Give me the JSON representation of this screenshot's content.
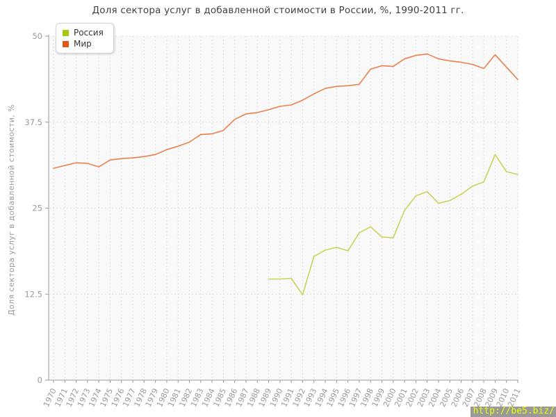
{
  "title": "Доля сектора услуг в добавленной стоимости в России, %, 1990-2011 гг.",
  "watermark": "http://be5.biz/",
  "chart_data": {
    "type": "line",
    "title": "Доля сектора услуг в добавленной стоимости в России, %, 1990-2011 гг.",
    "xlabel": "",
    "ylabel": "Доля сектора услуг в добавленной стоимости, %",
    "ylim": [
      0,
      50
    ],
    "yticks": [
      0,
      12.5,
      25,
      37.5,
      50
    ],
    "x_ticks": [
      1970,
      1971,
      1972,
      1973,
      1974,
      1975,
      1976,
      1977,
      1978,
      1979,
      1980,
      1981,
      1982,
      1983,
      1984,
      1985,
      1986,
      1987,
      1988,
      1989,
      1990,
      1991,
      1992,
      1993,
      1994,
      1995,
      1996,
      1997,
      1998,
      1999,
      2000,
      2001,
      2002,
      2003,
      2004,
      2005,
      2006,
      2007,
      2008,
      2009,
      2010,
      2011
    ],
    "grid": "dashed",
    "legend_position": "top-left",
    "plot_bg": "#f9f9f9",
    "grid_color": "#e0e0e0",
    "axis_color": "#999999",
    "tick_color": "#999999",
    "series": [
      {
        "name": "Россия",
        "color": "#a6c813",
        "line_color": "#c9d356",
        "points": [
          [
            1989,
            14.7
          ],
          [
            1990,
            14.7
          ],
          [
            1991,
            14.8
          ],
          [
            1992,
            12.4
          ],
          [
            1993,
            18.0
          ],
          [
            1994,
            18.9
          ],
          [
            1995,
            19.3
          ],
          [
            1996,
            18.8
          ],
          [
            1997,
            21.4
          ],
          [
            1998,
            22.3
          ],
          [
            1999,
            20.8
          ],
          [
            2000,
            20.7
          ],
          [
            2001,
            24.7
          ],
          [
            2002,
            26.8
          ],
          [
            2003,
            27.4
          ],
          [
            2004,
            25.7
          ],
          [
            2005,
            26.1
          ],
          [
            2006,
            27.0
          ],
          [
            2007,
            28.2
          ],
          [
            2008,
            28.8
          ],
          [
            2009,
            32.8
          ],
          [
            2010,
            30.3
          ],
          [
            2011,
            29.9
          ]
        ]
      },
      {
        "name": "Мир",
        "color": "#e0561c",
        "line_color": "#e8814d",
        "points": [
          [
            1970,
            30.8
          ],
          [
            1971,
            31.2
          ],
          [
            1972,
            31.6
          ],
          [
            1973,
            31.5
          ],
          [
            1974,
            31.0
          ],
          [
            1975,
            32.0
          ],
          [
            1976,
            32.2
          ],
          [
            1977,
            32.3
          ],
          [
            1978,
            32.5
          ],
          [
            1979,
            32.8
          ],
          [
            1980,
            33.5
          ],
          [
            1981,
            34.0
          ],
          [
            1982,
            34.6
          ],
          [
            1983,
            35.7
          ],
          [
            1984,
            35.8
          ],
          [
            1985,
            36.3
          ],
          [
            1986,
            37.9
          ],
          [
            1987,
            38.7
          ],
          [
            1988,
            38.9
          ],
          [
            1989,
            39.3
          ],
          [
            1990,
            39.8
          ],
          [
            1991,
            40.0
          ],
          [
            1992,
            40.7
          ],
          [
            1993,
            41.6
          ],
          [
            1994,
            42.4
          ],
          [
            1995,
            42.7
          ],
          [
            1996,
            42.8
          ],
          [
            1997,
            43.0
          ],
          [
            1998,
            45.2
          ],
          [
            1999,
            45.7
          ],
          [
            2000,
            45.6
          ],
          [
            2001,
            46.7
          ],
          [
            2002,
            47.2
          ],
          [
            2003,
            47.4
          ],
          [
            2004,
            46.7
          ],
          [
            2005,
            46.4
          ],
          [
            2006,
            46.2
          ],
          [
            2007,
            45.9
          ],
          [
            2008,
            45.3
          ],
          [
            2009,
            47.3
          ],
          [
            2010,
            45.5
          ],
          [
            2011,
            43.7
          ]
        ]
      }
    ]
  }
}
